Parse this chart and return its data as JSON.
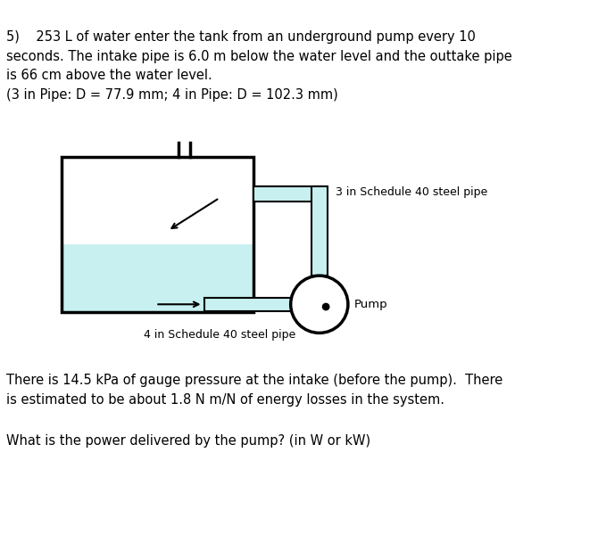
{
  "bg_color": "#ffffff",
  "text_color": "#000000",
  "title_text": "5)    253 L of water enter the tank from an underground pump every 10\nseconds. The intake pipe is 6.0 m below the water level and the outtake pipe\nis 66 cm above the water level.\n(3 in Pipe: D = 77.9 mm; 4 in Pipe: D = 102.3 mm)",
  "bottom_text1": "There is 14.5 kPa of gauge pressure at the intake (before the pump).  There\nis estimated to be about 1.8 N m/N of energy losses in the system.",
  "bottom_text2": "What is the power delivered by the pump? (in W or kW)",
  "pipe_label_3in": "3 in Schedule 40 steel pipe",
  "pipe_label_4in": "4 in Schedule 40 steel pipe",
  "pump_label": "Pump",
  "water_color": "#c8f0f0",
  "pipe_fill": "#c8f0f0",
  "pipe_outline": "#000000",
  "tank_outline": "#000000"
}
